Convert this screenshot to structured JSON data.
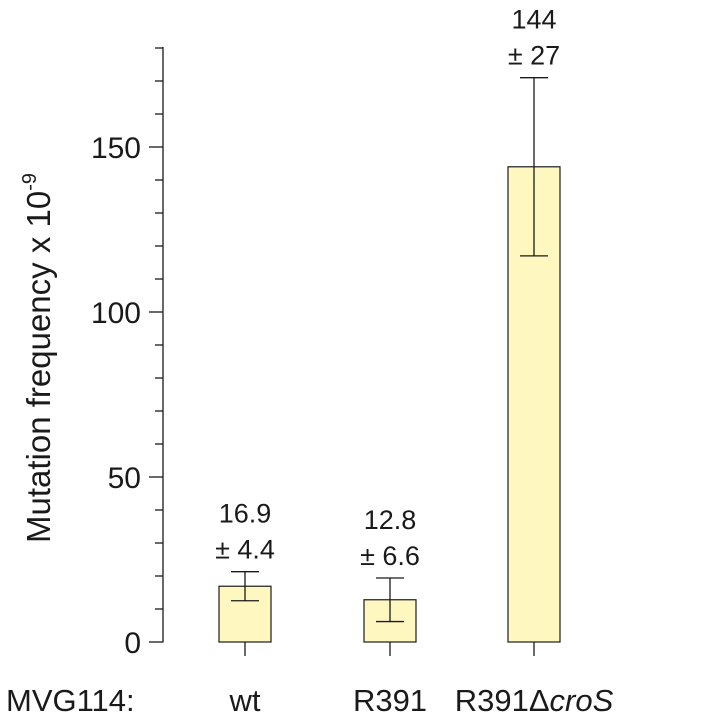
{
  "chart_data": {
    "type": "bar",
    "title": "",
    "xlabel": "",
    "ylabel": "Mutation frequency x 10",
    "ylabel_exponent": "-9",
    "axis_prefix_label": "MVG114:",
    "ylim": [
      0,
      180
    ],
    "yticks_major": [
      0,
      50,
      100,
      150
    ],
    "yticks_minor_step": 10,
    "grid": false,
    "legend": "none",
    "bar_color": "#fff7c0",
    "categories": [
      {
        "label": "wt",
        "suffix": "",
        "suffix_italic": false
      },
      {
        "label": "R391",
        "suffix": "",
        "suffix_italic": false
      },
      {
        "label": "R391Δ",
        "suffix": "croS",
        "suffix_italic": true
      }
    ],
    "values": [
      16.9,
      12.8,
      144
    ],
    "errors": [
      4.4,
      6.6,
      27
    ],
    "value_labels": [
      "16.9",
      "12.8",
      "144"
    ],
    "error_labels": [
      "± 4.4",
      "± 6.6",
      "± 27"
    ]
  }
}
